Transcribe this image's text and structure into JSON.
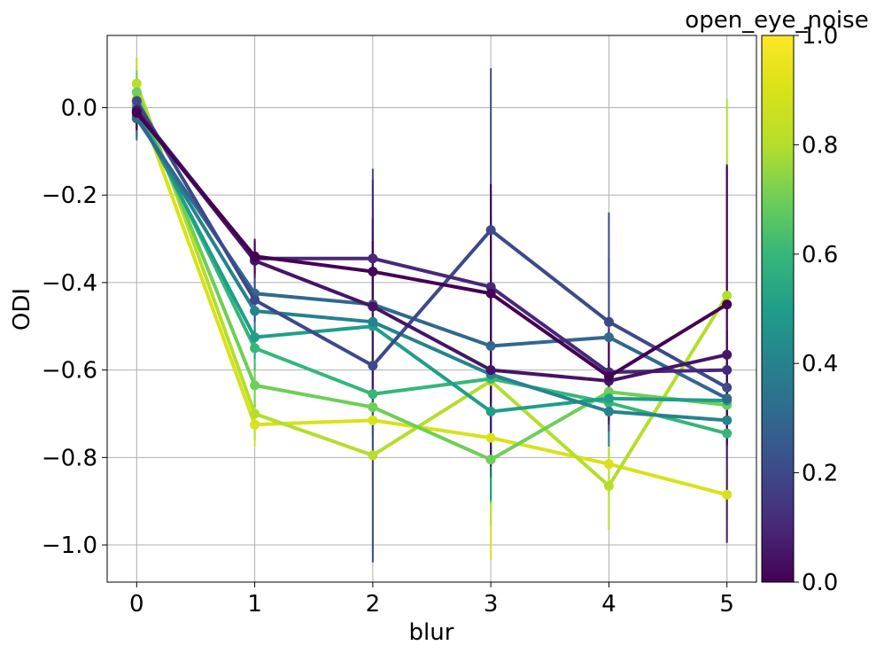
{
  "chart_data": {
    "type": "line",
    "xlabel": "blur",
    "ylabel": "ODI",
    "xlim": [
      -0.25,
      5.25
    ],
    "ylim": [
      -1.085,
      0.165
    ],
    "xticks": [
      0,
      1,
      2,
      3,
      4,
      5
    ],
    "yticks": [
      0.0,
      -0.2,
      -0.4,
      -0.6,
      -0.8,
      -1.0
    ],
    "ytick_labels": [
      "0.0",
      "−0.2",
      "−0.4",
      "−0.6",
      "−0.8",
      "−1.0"
    ],
    "grid": true,
    "x": [
      0,
      1,
      2,
      3,
      4,
      5
    ],
    "colorbar": {
      "label": "open_eye_noise",
      "range": [
        0.0,
        1.0
      ],
      "ticks": [
        0.0,
        0.2,
        0.4,
        0.6,
        0.8,
        1.0
      ],
      "tick_labels": [
        "0.0",
        "0.2",
        "0.4",
        "0.6",
        "0.8",
        "1.0"
      ],
      "colormap": "viridis"
    },
    "series": [
      {
        "c": 0.9,
        "values": [
          0.02,
          -0.725,
          -0.715,
          -0.755,
          -0.815,
          -0.885
        ],
        "err": [
          0.06,
          0.05,
          0.3,
          0.28,
          0.08,
          0.06
        ]
      },
      {
        "c": 0.8,
        "values": [
          0.055,
          -0.7,
          -0.795,
          -0.625,
          -0.865,
          -0.43
        ],
        "err": [
          0.06,
          0.06,
          0.06,
          0.33,
          0.1,
          0.45
        ]
      },
      {
        "c": 0.7,
        "values": [
          0.035,
          -0.635,
          -0.685,
          -0.805,
          -0.65,
          -0.68
        ],
        "err": [
          0.05,
          0.05,
          0.09,
          0.1,
          0.05,
          0.06
        ]
      },
      {
        "c": 0.6,
        "values": [
          0.005,
          -0.55,
          -0.655,
          -0.62,
          -0.675,
          -0.745
        ],
        "err": [
          0.05,
          0.05,
          0.05,
          0.28,
          0.09,
          0.06
        ]
      },
      {
        "c": 0.5,
        "values": [
          -0.01,
          -0.525,
          -0.5,
          -0.695,
          -0.665,
          -0.67
        ],
        "err": [
          0.05,
          0.05,
          0.25,
          0.2,
          0.08,
          0.06
        ]
      },
      {
        "c": 0.4,
        "values": [
          -0.02,
          -0.465,
          -0.49,
          -0.61,
          -0.695,
          -0.715
        ],
        "err": [
          0.05,
          0.05,
          0.2,
          0.18,
          0.08,
          0.06
        ]
      },
      {
        "c": 0.3,
        "values": [
          -0.025,
          -0.425,
          -0.45,
          -0.545,
          -0.525,
          -0.665
        ],
        "err": [
          0.05,
          0.05,
          0.2,
          0.3,
          0.18,
          0.06
        ]
      },
      {
        "c": 0.2,
        "values": [
          0.015,
          -0.44,
          -0.59,
          -0.28,
          -0.49,
          -0.64
        ],
        "err": [
          0.05,
          0.05,
          0.45,
          0.37,
          0.25,
          0.06
        ]
      },
      {
        "c": 0.1,
        "values": [
          -0.005,
          -0.345,
          -0.345,
          -0.41,
          -0.605,
          -0.6
        ],
        "err": [
          0.04,
          0.04,
          0.18,
          0.22,
          0.1,
          0.09
        ]
      },
      {
        "c": 0.05,
        "values": [
          -0.008,
          -0.35,
          -0.455,
          -0.6,
          -0.625,
          -0.565
        ],
        "err": [
          0.04,
          0.04,
          0.2,
          0.22,
          0.1,
          0.43
        ]
      },
      {
        "c": 0.0,
        "values": [
          -0.012,
          -0.34,
          -0.375,
          -0.425,
          -0.615,
          -0.45
        ],
        "err": [
          0.04,
          0.04,
          0.07,
          0.25,
          0.1,
          0.32
        ]
      }
    ]
  }
}
